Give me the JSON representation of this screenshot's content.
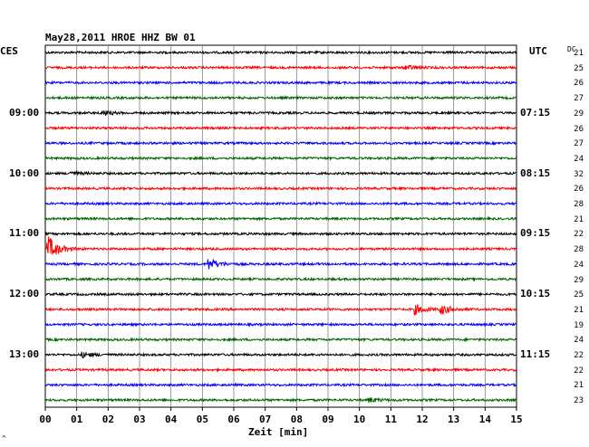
{
  "header": {
    "title": "May28,2011   HROE HHZ BW 01",
    "left_zone": "CES",
    "right_zone": "UTC",
    "dc_label": "DC"
  },
  "footer": {
    "xlabel": "Zeit [min]",
    "corner_mark": "^"
  },
  "left_time_labels": [
    "09:00",
    "10:00",
    "11:00",
    "12:00",
    "13:00"
  ],
  "right_time_labels": [
    "07:15",
    "08:15",
    "09:15",
    "10:15",
    "11:15"
  ],
  "dc_values": [
    "21",
    "25",
    "26",
    "27",
    "29",
    "26",
    "27",
    "24",
    "32",
    "26",
    "28",
    "21",
    "22",
    "28",
    "24",
    "29",
    "25",
    "21",
    "19",
    "24",
    "22",
    "22",
    "21",
    "23"
  ],
  "x_ticks": [
    "00",
    "01",
    "02",
    "03",
    "04",
    "05",
    "06",
    "07",
    "08",
    "09",
    "10",
    "11",
    "12",
    "13",
    "14",
    "15"
  ],
  "colors": {
    "trace_cycle": [
      "#000000",
      "#ff0000",
      "#0000ff",
      "#006400"
    ],
    "grid": "#808080"
  },
  "chart_data": {
    "type": "line",
    "xlabel": "Zeit [min]",
    "xlim": [
      0,
      15
    ],
    "trace_count": 24,
    "events": [
      {
        "trace": 1,
        "minute": 11.5,
        "amp": 2.5
      },
      {
        "trace": 4,
        "minute": 1.8,
        "amp": 2.5
      },
      {
        "trace": 8,
        "minute": 0.8,
        "amp": 2.0
      },
      {
        "trace": 13,
        "minute": 0.1,
        "amp": 13
      },
      {
        "trace": 14,
        "minute": 5.2,
        "amp": 6
      },
      {
        "trace": 17,
        "minute": 11.8,
        "amp": 5
      },
      {
        "trace": 17,
        "minute": 12.6,
        "amp": 5
      },
      {
        "trace": 20,
        "minute": 1.2,
        "amp": 2.5
      },
      {
        "trace": 23,
        "minute": 10.3,
        "amp": 2.5
      }
    ]
  }
}
